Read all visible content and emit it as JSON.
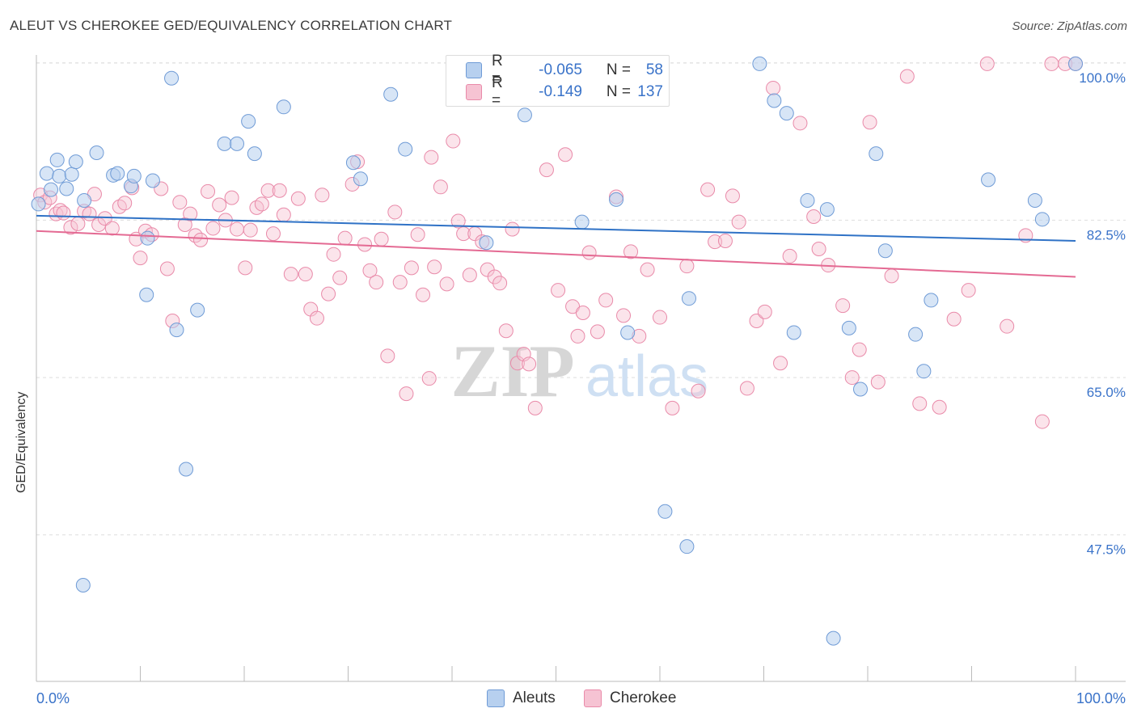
{
  "title": "ALEUT VS CHEROKEE GED/EQUIVALENCY CORRELATION CHART",
  "source": "Source: ZipAtlas.com",
  "legend": {
    "rows": [
      {
        "series": "Aleuts",
        "r_label": "R =",
        "r_value": "-0.065",
        "n_label": "N =",
        "n_value": "58"
      },
      {
        "series": "Cherokee",
        "r_label": "R =",
        "r_value": "-0.149",
        "n_label": "N =",
        "n_value": "137"
      }
    ]
  },
  "watermark": {
    "zip": "ZIP",
    "atlas": "atlas"
  },
  "colors": {
    "aleut_fill": "#b7d0ef",
    "aleut_stroke": "#6f9bd6",
    "aleut_line": "#2f72c6",
    "cherokee_fill": "#f6c3d3",
    "cherokee_stroke": "#e98aa9",
    "cherokee_line": "#e46a93",
    "tick_label": "#3a73c9",
    "grid": "#dddddd"
  },
  "chart_data": {
    "type": "scatter",
    "title": "ALEUT VS CHEROKEE GED/EQUIVALENCY CORRELATION CHART",
    "xlabel": "",
    "ylabel": "GED/Equivalency",
    "xlim": [
      0,
      100
    ],
    "ylim": [
      31.2,
      101.6
    ],
    "x_tick_labels": [
      "0.0%",
      "100.0%"
    ],
    "y_ticks": [
      47.5,
      65.0,
      82.5,
      100.0
    ],
    "y_tick_labels": [
      "47.5%",
      "65.0%",
      "82.5%",
      "100.0%"
    ],
    "grid": "horizontal dashed",
    "legend_position": "top-center",
    "series": [
      {
        "name": "Aleuts",
        "trend": [
          [
            0,
            83.0
          ],
          [
            100,
            80.2
          ]
        ],
        "points": [
          [
            0.2,
            84.3
          ],
          [
            1.0,
            87.7
          ],
          [
            1.4,
            85.9
          ],
          [
            2.0,
            89.2
          ],
          [
            2.2,
            87.4
          ],
          [
            2.9,
            86.0
          ],
          [
            3.4,
            87.6
          ],
          [
            3.8,
            89.0
          ],
          [
            4.6,
            84.7
          ],
          [
            5.8,
            90.0
          ],
          [
            7.4,
            87.5
          ],
          [
            7.8,
            87.7
          ],
          [
            9.1,
            86.3
          ],
          [
            9.4,
            87.4
          ],
          [
            10.7,
            80.5
          ],
          [
            10.6,
            74.2
          ],
          [
            11.2,
            86.9
          ],
          [
            13.0,
            98.3
          ],
          [
            13.5,
            70.3
          ],
          [
            14.4,
            54.8
          ],
          [
            15.5,
            72.5
          ],
          [
            18.1,
            91.0
          ],
          [
            19.3,
            91.0
          ],
          [
            20.4,
            93.5
          ],
          [
            21.0,
            89.9
          ],
          [
            23.8,
            95.1
          ],
          [
            30.5,
            88.9
          ],
          [
            31.2,
            87.1
          ],
          [
            34.1,
            96.5
          ],
          [
            35.5,
            90.4
          ],
          [
            43.3,
            80.0
          ],
          [
            47.0,
            94.2
          ],
          [
            52.5,
            82.3
          ],
          [
            53.1,
            99.9
          ],
          [
            55.8,
            84.8
          ],
          [
            56.9,
            70.0
          ],
          [
            60.5,
            50.1
          ],
          [
            62.6,
            46.2
          ],
          [
            62.8,
            73.8
          ],
          [
            69.6,
            99.9
          ],
          [
            71.0,
            95.8
          ],
          [
            72.2,
            94.4
          ],
          [
            72.9,
            70.0
          ],
          [
            74.2,
            84.7
          ],
          [
            76.1,
            83.7
          ],
          [
            76.7,
            36.0
          ],
          [
            78.2,
            70.5
          ],
          [
            79.3,
            63.7
          ],
          [
            80.8,
            89.9
          ],
          [
            81.7,
            79.1
          ],
          [
            84.6,
            69.8
          ],
          [
            85.4,
            65.7
          ],
          [
            86.1,
            73.6
          ],
          [
            91.6,
            87.0
          ],
          [
            96.1,
            84.7
          ],
          [
            96.8,
            82.6
          ],
          [
            100.0,
            99.9
          ],
          [
            4.5,
            41.9
          ]
        ]
      },
      {
        "name": "Cherokee",
        "trend": [
          [
            0,
            81.3
          ],
          [
            100,
            76.2
          ]
        ],
        "points": [
          [
            0.4,
            85.3
          ],
          [
            0.8,
            84.5
          ],
          [
            1.3,
            85.0
          ],
          [
            1.9,
            83.2
          ],
          [
            2.3,
            83.6
          ],
          [
            2.6,
            83.3
          ],
          [
            3.3,
            81.7
          ],
          [
            4.0,
            82.1
          ],
          [
            4.6,
            83.5
          ],
          [
            5.1,
            83.2
          ],
          [
            5.6,
            85.4
          ],
          [
            6.0,
            82.0
          ],
          [
            6.6,
            82.7
          ],
          [
            7.3,
            81.6
          ],
          [
            8.0,
            84.0
          ],
          [
            8.5,
            84.4
          ],
          [
            9.2,
            86.1
          ],
          [
            9.6,
            80.4
          ],
          [
            10.0,
            78.3
          ],
          [
            10.5,
            81.3
          ],
          [
            11.1,
            80.9
          ],
          [
            12.0,
            86.0
          ],
          [
            12.6,
            77.1
          ],
          [
            13.1,
            71.3
          ],
          [
            13.8,
            84.5
          ],
          [
            14.3,
            82.0
          ],
          [
            14.8,
            83.2
          ],
          [
            15.3,
            80.8
          ],
          [
            15.8,
            80.3
          ],
          [
            16.5,
            85.7
          ],
          [
            17.0,
            81.6
          ],
          [
            17.6,
            84.2
          ],
          [
            18.2,
            82.5
          ],
          [
            18.8,
            85.0
          ],
          [
            19.3,
            81.5
          ],
          [
            20.1,
            77.2
          ],
          [
            20.6,
            81.4
          ],
          [
            21.2,
            83.9
          ],
          [
            21.7,
            84.3
          ],
          [
            22.3,
            85.8
          ],
          [
            22.8,
            81.0
          ],
          [
            23.4,
            85.8
          ],
          [
            23.8,
            83.1
          ],
          [
            24.5,
            76.5
          ],
          [
            25.2,
            84.9
          ],
          [
            25.9,
            76.5
          ],
          [
            26.4,
            72.6
          ],
          [
            27.0,
            71.6
          ],
          [
            27.5,
            85.3
          ],
          [
            28.1,
            74.3
          ],
          [
            28.6,
            78.7
          ],
          [
            29.2,
            76.1
          ],
          [
            29.7,
            80.5
          ],
          [
            30.4,
            86.5
          ],
          [
            30.9,
            89.0
          ],
          [
            31.6,
            79.8
          ],
          [
            32.1,
            76.9
          ],
          [
            32.7,
            75.6
          ],
          [
            33.2,
            80.4
          ],
          [
            33.8,
            67.4
          ],
          [
            34.5,
            83.4
          ],
          [
            35.0,
            75.6
          ],
          [
            35.6,
            63.2
          ],
          [
            36.1,
            77.2
          ],
          [
            36.7,
            80.9
          ],
          [
            37.2,
            74.2
          ],
          [
            37.8,
            64.9
          ],
          [
            38.3,
            77.3
          ],
          [
            38.9,
            86.2
          ],
          [
            39.5,
            75.4
          ],
          [
            40.1,
            91.3
          ],
          [
            40.6,
            82.4
          ],
          [
            41.1,
            81.0
          ],
          [
            41.7,
            76.4
          ],
          [
            42.2,
            81.0
          ],
          [
            42.9,
            80.1
          ],
          [
            43.4,
            77.0
          ],
          [
            44.1,
            76.2
          ],
          [
            44.6,
            75.5
          ],
          [
            45.2,
            70.2
          ],
          [
            45.8,
            81.5
          ],
          [
            46.3,
            66.6
          ],
          [
            46.9,
            67.6
          ],
          [
            47.4,
            66.5
          ],
          [
            48.0,
            61.6
          ],
          [
            49.1,
            88.1
          ],
          [
            50.2,
            74.7
          ],
          [
            50.9,
            89.8
          ],
          [
            51.6,
            72.9
          ],
          [
            52.1,
            69.6
          ],
          [
            52.6,
            72.2
          ],
          [
            53.2,
            78.9
          ],
          [
            54.0,
            70.1
          ],
          [
            54.8,
            73.6
          ],
          [
            55.8,
            85.1
          ],
          [
            56.5,
            71.9
          ],
          [
            57.2,
            79.0
          ],
          [
            58.0,
            69.6
          ],
          [
            58.8,
            77.0
          ],
          [
            60.0,
            71.7
          ],
          [
            61.2,
            61.6
          ],
          [
            62.6,
            77.4
          ],
          [
            63.7,
            63.5
          ],
          [
            64.6,
            85.9
          ],
          [
            65.3,
            80.1
          ],
          [
            66.3,
            80.2
          ],
          [
            67.0,
            85.2
          ],
          [
            67.6,
            82.3
          ],
          [
            68.4,
            63.8
          ],
          [
            69.3,
            71.3
          ],
          [
            70.1,
            72.3
          ],
          [
            70.9,
            97.2
          ],
          [
            71.6,
            66.6
          ],
          [
            72.5,
            78.5
          ],
          [
            73.5,
            93.3
          ],
          [
            74.8,
            82.9
          ],
          [
            75.3,
            79.3
          ],
          [
            76.2,
            77.5
          ],
          [
            77.6,
            73.0
          ],
          [
            78.5,
            65.0
          ],
          [
            79.2,
            68.1
          ],
          [
            80.2,
            93.4
          ],
          [
            81.0,
            64.5
          ],
          [
            82.3,
            76.3
          ],
          [
            83.8,
            98.5
          ],
          [
            85.0,
            62.1
          ],
          [
            86.9,
            61.7
          ],
          [
            88.3,
            71.5
          ],
          [
            89.7,
            74.7
          ],
          [
            91.5,
            99.9
          ],
          [
            93.4,
            70.7
          ],
          [
            95.2,
            80.8
          ],
          [
            96.8,
            60.1
          ],
          [
            97.7,
            99.9
          ],
          [
            99.0,
            99.9
          ],
          [
            100.0,
            99.9
          ],
          [
            38.0,
            89.5
          ]
        ]
      }
    ]
  }
}
